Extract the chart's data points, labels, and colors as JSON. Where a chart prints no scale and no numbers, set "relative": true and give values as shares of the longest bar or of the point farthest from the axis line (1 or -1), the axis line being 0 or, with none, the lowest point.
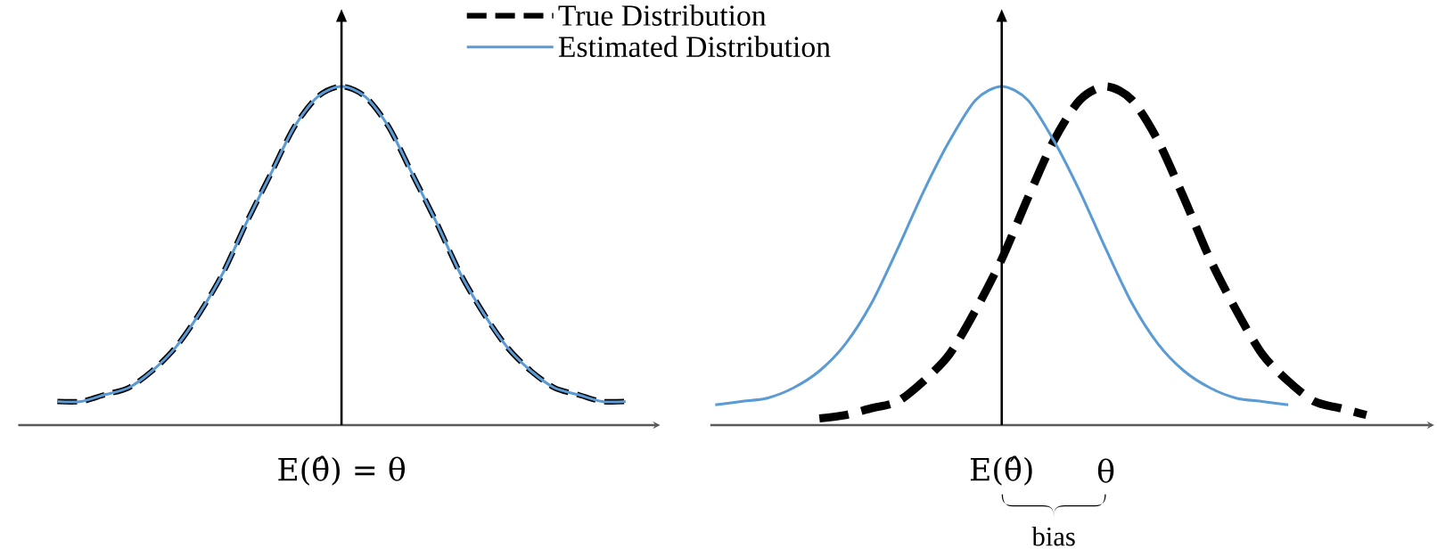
{
  "chart_data": [
    {
      "type": "line",
      "relative": true,
      "legend": "top right",
      "categories": [
        null,
        null,
        null,
        null,
        null,
        null,
        null,
        null,
        null,
        null,
        null,
        null,
        null,
        null,
        null,
        null,
        null,
        null,
        null,
        null,
        null,
        null,
        null,
        null,
        null
      ],
      "series": [
        {
          "name": "True Distribution",
          "color": "#000000",
          "line_style": "dashed",
          "values": [
            0.07,
            0.07,
            0.09,
            0.11,
            0.16,
            0.23,
            0.33,
            0.45,
            0.6,
            0.74,
            0.88,
            0.97,
            1,
            0.97,
            0.88,
            0.74,
            0.6,
            0.45,
            0.33,
            0.23,
            0.16,
            0.11,
            0.09,
            0.07,
            0.07
          ]
        },
        {
          "name": "Estimated Distribution",
          "color": "#5b9bd5",
          "line_style": "solid",
          "values": [
            0.07,
            0.07,
            0.09,
            0.11,
            0.16,
            0.23,
            0.33,
            0.45,
            0.6,
            0.74,
            0.88,
            0.97,
            1,
            0.97,
            0.88,
            0.74,
            0.6,
            0.45,
            0.33,
            0.23,
            0.16,
            0.11,
            0.09,
            0.07,
            0.07
          ]
        }
      ],
      "annotations": [
        "E(θ̂) = θ"
      ]
    },
    {
      "type": "line",
      "relative": true,
      "categories": [
        null,
        null,
        null,
        null,
        null,
        null,
        null,
        null,
        null,
        null,
        null,
        null,
        null,
        null,
        null,
        null,
        null,
        null,
        null,
        null,
        null,
        null,
        null,
        null,
        null,
        null
      ],
      "series": [
        {
          "color": "#000000",
          "line_style": "dashed",
          "values": [
            null,
            null,
            null,
            null,
            0.02,
            0.03,
            0.05,
            0.07,
            0.13,
            0.21,
            0.34,
            0.49,
            0.67,
            0.84,
            0.96,
            1,
            0.96,
            0.84,
            0.67,
            0.49,
            0.34,
            0.21,
            0.13,
            0.07,
            0.05,
            0.03
          ]
        },
        {
          "color": "#5b9bd5",
          "line_style": "solid",
          "values": [
            0.06,
            0.07,
            0.08,
            0.11,
            0.16,
            0.24,
            0.36,
            0.52,
            0.69,
            0.84,
            0.96,
            1,
            0.96,
            0.84,
            0.69,
            0.52,
            0.36,
            0.24,
            0.16,
            0.11,
            0.08,
            0.07,
            0.06,
            null,
            null,
            null
          ]
        }
      ],
      "annotations": [
        "E(θ̂)",
        "θ",
        "bias"
      ]
    }
  ]
}
